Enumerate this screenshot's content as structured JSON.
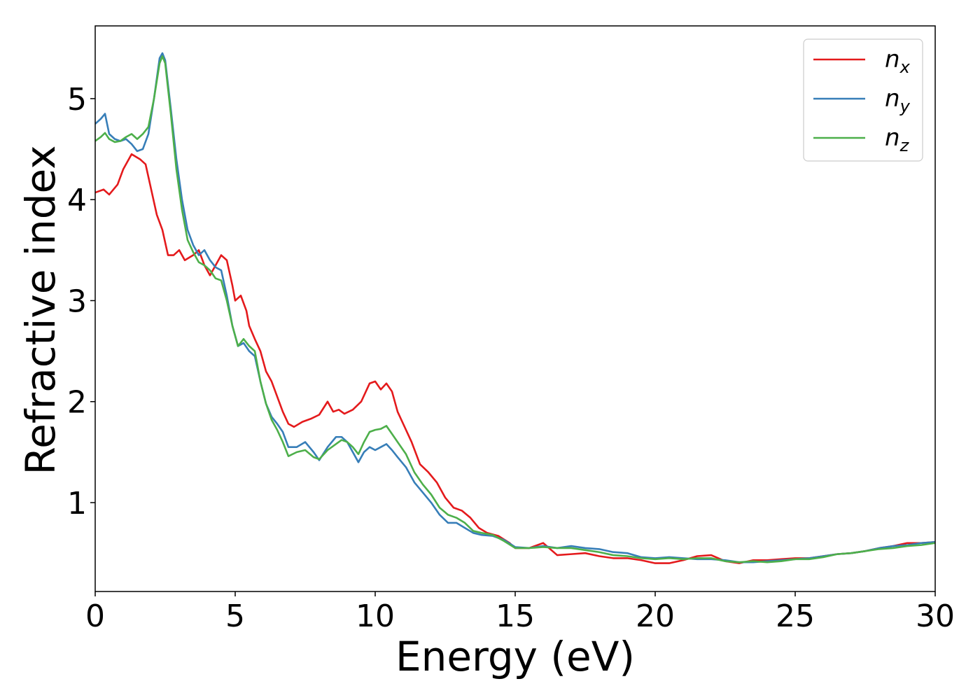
{
  "chart_data": {
    "type": "line",
    "title": "",
    "xlabel": "Energy (eV)",
    "ylabel": "Refractive index",
    "xlim": [
      0,
      30
    ],
    "ylim": [
      0.12,
      5.72
    ],
    "xticks": [
      0,
      5,
      10,
      15,
      20,
      25,
      30
    ],
    "xtick_labels": [
      "0",
      "5",
      "10",
      "15",
      "20",
      "25",
      "30"
    ],
    "yticks": [
      1,
      2,
      3,
      4,
      5
    ],
    "ytick_labels": [
      "1",
      "2",
      "3",
      "4",
      "5"
    ],
    "grid": false,
    "legend_position": "top-right",
    "series": [
      {
        "name": "n",
        "subscript": "x",
        "color": "#e41a1c",
        "points": [
          [
            0,
            4.07
          ],
          [
            0.3,
            4.1
          ],
          [
            0.5,
            4.05
          ],
          [
            0.8,
            4.15
          ],
          [
            1.0,
            4.3
          ],
          [
            1.3,
            4.45
          ],
          [
            1.6,
            4.4
          ],
          [
            1.8,
            4.35
          ],
          [
            2.0,
            4.1
          ],
          [
            2.2,
            3.85
          ],
          [
            2.4,
            3.7
          ],
          [
            2.6,
            3.45
          ],
          [
            2.8,
            3.45
          ],
          [
            3.0,
            3.5
          ],
          [
            3.2,
            3.4
          ],
          [
            3.5,
            3.45
          ],
          [
            3.7,
            3.5
          ],
          [
            3.9,
            3.35
          ],
          [
            4.1,
            3.25
          ],
          [
            4.3,
            3.35
          ],
          [
            4.5,
            3.45
          ],
          [
            4.7,
            3.4
          ],
          [
            4.9,
            3.15
          ],
          [
            5.0,
            3.0
          ],
          [
            5.2,
            3.05
          ],
          [
            5.4,
            2.9
          ],
          [
            5.5,
            2.75
          ],
          [
            5.7,
            2.62
          ],
          [
            5.9,
            2.5
          ],
          [
            6.1,
            2.3
          ],
          [
            6.3,
            2.2
          ],
          [
            6.5,
            2.05
          ],
          [
            6.7,
            1.9
          ],
          [
            6.9,
            1.78
          ],
          [
            7.1,
            1.75
          ],
          [
            7.4,
            1.8
          ],
          [
            7.7,
            1.83
          ],
          [
            8.0,
            1.87
          ],
          [
            8.3,
            2.0
          ],
          [
            8.5,
            1.9
          ],
          [
            8.7,
            1.92
          ],
          [
            8.9,
            1.88
          ],
          [
            9.2,
            1.92
          ],
          [
            9.5,
            2.0
          ],
          [
            9.8,
            2.18
          ],
          [
            10.0,
            2.2
          ],
          [
            10.2,
            2.12
          ],
          [
            10.4,
            2.18
          ],
          [
            10.6,
            2.1
          ],
          [
            10.8,
            1.9
          ],
          [
            11.0,
            1.78
          ],
          [
            11.3,
            1.6
          ],
          [
            11.6,
            1.38
          ],
          [
            11.9,
            1.3
          ],
          [
            12.2,
            1.2
          ],
          [
            12.5,
            1.05
          ],
          [
            12.8,
            0.95
          ],
          [
            13.1,
            0.92
          ],
          [
            13.4,
            0.85
          ],
          [
            13.7,
            0.75
          ],
          [
            14.0,
            0.7
          ],
          [
            14.4,
            0.67
          ],
          [
            14.8,
            0.6
          ],
          [
            15.0,
            0.55
          ],
          [
            15.5,
            0.55
          ],
          [
            16.0,
            0.6
          ],
          [
            16.5,
            0.48
          ],
          [
            17.0,
            0.49
          ],
          [
            17.5,
            0.5
          ],
          [
            18.0,
            0.47
          ],
          [
            18.5,
            0.45
          ],
          [
            19.0,
            0.45
          ],
          [
            19.5,
            0.43
          ],
          [
            20.0,
            0.4
          ],
          [
            20.5,
            0.4
          ],
          [
            21.0,
            0.43
          ],
          [
            21.5,
            0.47
          ],
          [
            22.0,
            0.48
          ],
          [
            22.5,
            0.42
          ],
          [
            23.0,
            0.4
          ],
          [
            23.5,
            0.43
          ],
          [
            24.0,
            0.43
          ],
          [
            24.5,
            0.44
          ],
          [
            25.0,
            0.45
          ],
          [
            25.5,
            0.45
          ],
          [
            26.0,
            0.47
          ],
          [
            26.5,
            0.49
          ],
          [
            27.0,
            0.5
          ],
          [
            27.5,
            0.52
          ],
          [
            28.0,
            0.55
          ],
          [
            28.5,
            0.57
          ],
          [
            29.0,
            0.6
          ],
          [
            29.5,
            0.6
          ],
          [
            30.0,
            0.61
          ]
        ]
      },
      {
        "name": "n",
        "subscript": "y",
        "color": "#377eb8",
        "points": [
          [
            0,
            4.75
          ],
          [
            0.2,
            4.8
          ],
          [
            0.35,
            4.85
          ],
          [
            0.5,
            4.65
          ],
          [
            0.7,
            4.6
          ],
          [
            0.9,
            4.58
          ],
          [
            1.1,
            4.6
          ],
          [
            1.3,
            4.55
          ],
          [
            1.5,
            4.48
          ],
          [
            1.7,
            4.5
          ],
          [
            1.9,
            4.65
          ],
          [
            2.1,
            5.0
          ],
          [
            2.3,
            5.4
          ],
          [
            2.4,
            5.45
          ],
          [
            2.5,
            5.38
          ],
          [
            2.7,
            4.9
          ],
          [
            2.9,
            4.4
          ],
          [
            3.1,
            4.0
          ],
          [
            3.3,
            3.7
          ],
          [
            3.5,
            3.55
          ],
          [
            3.7,
            3.45
          ],
          [
            3.9,
            3.5
          ],
          [
            4.1,
            3.4
          ],
          [
            4.3,
            3.33
          ],
          [
            4.5,
            3.3
          ],
          [
            4.7,
            3.05
          ],
          [
            4.9,
            2.75
          ],
          [
            5.1,
            2.55
          ],
          [
            5.3,
            2.58
          ],
          [
            5.5,
            2.5
          ],
          [
            5.7,
            2.45
          ],
          [
            5.9,
            2.2
          ],
          [
            6.1,
            1.98
          ],
          [
            6.3,
            1.85
          ],
          [
            6.5,
            1.78
          ],
          [
            6.7,
            1.7
          ],
          [
            6.9,
            1.55
          ],
          [
            7.2,
            1.55
          ],
          [
            7.5,
            1.6
          ],
          [
            7.8,
            1.5
          ],
          [
            8.0,
            1.42
          ],
          [
            8.3,
            1.55
          ],
          [
            8.6,
            1.65
          ],
          [
            8.8,
            1.65
          ],
          [
            9.0,
            1.6
          ],
          [
            9.2,
            1.5
          ],
          [
            9.4,
            1.4
          ],
          [
            9.6,
            1.5
          ],
          [
            9.8,
            1.55
          ],
          [
            10.0,
            1.52
          ],
          [
            10.2,
            1.55
          ],
          [
            10.4,
            1.58
          ],
          [
            10.6,
            1.52
          ],
          [
            10.8,
            1.45
          ],
          [
            11.1,
            1.35
          ],
          [
            11.4,
            1.2
          ],
          [
            11.7,
            1.1
          ],
          [
            12.0,
            1.0
          ],
          [
            12.3,
            0.88
          ],
          [
            12.6,
            0.8
          ],
          [
            12.9,
            0.8
          ],
          [
            13.2,
            0.75
          ],
          [
            13.5,
            0.7
          ],
          [
            13.8,
            0.68
          ],
          [
            14.2,
            0.67
          ],
          [
            14.6,
            0.63
          ],
          [
            15.0,
            0.56
          ],
          [
            15.5,
            0.55
          ],
          [
            16.0,
            0.57
          ],
          [
            16.5,
            0.55
          ],
          [
            17.0,
            0.57
          ],
          [
            17.5,
            0.55
          ],
          [
            18.0,
            0.54
          ],
          [
            18.5,
            0.51
          ],
          [
            19.0,
            0.5
          ],
          [
            19.5,
            0.46
          ],
          [
            20.0,
            0.45
          ],
          [
            20.5,
            0.46
          ],
          [
            21.0,
            0.45
          ],
          [
            21.5,
            0.44
          ],
          [
            22.0,
            0.44
          ],
          [
            22.5,
            0.43
          ],
          [
            23.0,
            0.41
          ],
          [
            23.5,
            0.41
          ],
          [
            24.0,
            0.42
          ],
          [
            24.5,
            0.43
          ],
          [
            25.0,
            0.44
          ],
          [
            25.5,
            0.45
          ],
          [
            26.0,
            0.47
          ],
          [
            26.5,
            0.49
          ],
          [
            27.0,
            0.5
          ],
          [
            27.5,
            0.52
          ],
          [
            28.0,
            0.55
          ],
          [
            28.5,
            0.57
          ],
          [
            29.0,
            0.58
          ],
          [
            29.5,
            0.6
          ],
          [
            30.0,
            0.61
          ]
        ]
      },
      {
        "name": "n",
        "subscript": "z",
        "color": "#4daf4a",
        "points": [
          [
            0,
            4.58
          ],
          [
            0.2,
            4.62
          ],
          [
            0.35,
            4.66
          ],
          [
            0.5,
            4.6
          ],
          [
            0.7,
            4.57
          ],
          [
            0.9,
            4.58
          ],
          [
            1.1,
            4.62
          ],
          [
            1.3,
            4.65
          ],
          [
            1.5,
            4.6
          ],
          [
            1.7,
            4.65
          ],
          [
            1.9,
            4.72
          ],
          [
            2.1,
            5.0
          ],
          [
            2.3,
            5.35
          ],
          [
            2.4,
            5.42
          ],
          [
            2.5,
            5.35
          ],
          [
            2.7,
            4.85
          ],
          [
            2.9,
            4.3
          ],
          [
            3.1,
            3.9
          ],
          [
            3.3,
            3.6
          ],
          [
            3.5,
            3.48
          ],
          [
            3.7,
            3.38
          ],
          [
            3.9,
            3.35
          ],
          [
            4.1,
            3.3
          ],
          [
            4.3,
            3.22
          ],
          [
            4.5,
            3.2
          ],
          [
            4.7,
            3.0
          ],
          [
            4.9,
            2.75
          ],
          [
            5.1,
            2.55
          ],
          [
            5.3,
            2.62
          ],
          [
            5.5,
            2.55
          ],
          [
            5.7,
            2.5
          ],
          [
            5.9,
            2.2
          ],
          [
            6.1,
            1.98
          ],
          [
            6.3,
            1.82
          ],
          [
            6.5,
            1.72
          ],
          [
            6.7,
            1.6
          ],
          [
            6.9,
            1.46
          ],
          [
            7.2,
            1.5
          ],
          [
            7.5,
            1.52
          ],
          [
            7.8,
            1.45
          ],
          [
            8.0,
            1.43
          ],
          [
            8.3,
            1.52
          ],
          [
            8.6,
            1.58
          ],
          [
            8.8,
            1.62
          ],
          [
            9.0,
            1.6
          ],
          [
            9.2,
            1.55
          ],
          [
            9.4,
            1.48
          ],
          [
            9.6,
            1.6
          ],
          [
            9.8,
            1.7
          ],
          [
            10.0,
            1.72
          ],
          [
            10.2,
            1.73
          ],
          [
            10.4,
            1.76
          ],
          [
            10.6,
            1.68
          ],
          [
            10.8,
            1.6
          ],
          [
            11.1,
            1.48
          ],
          [
            11.4,
            1.3
          ],
          [
            11.7,
            1.18
          ],
          [
            12.0,
            1.08
          ],
          [
            12.3,
            0.95
          ],
          [
            12.6,
            0.88
          ],
          [
            12.9,
            0.85
          ],
          [
            13.2,
            0.8
          ],
          [
            13.5,
            0.72
          ],
          [
            13.8,
            0.7
          ],
          [
            14.2,
            0.68
          ],
          [
            14.6,
            0.62
          ],
          [
            15.0,
            0.55
          ],
          [
            15.5,
            0.55
          ],
          [
            16.0,
            0.56
          ],
          [
            16.5,
            0.55
          ],
          [
            17.0,
            0.55
          ],
          [
            17.5,
            0.53
          ],
          [
            18.0,
            0.51
          ],
          [
            18.5,
            0.48
          ],
          [
            19.0,
            0.47
          ],
          [
            19.5,
            0.45
          ],
          [
            20.0,
            0.44
          ],
          [
            20.5,
            0.45
          ],
          [
            21.0,
            0.44
          ],
          [
            21.5,
            0.45
          ],
          [
            22.0,
            0.45
          ],
          [
            22.5,
            0.42
          ],
          [
            23.0,
            0.41
          ],
          [
            23.5,
            0.42
          ],
          [
            24.0,
            0.41
          ],
          [
            24.5,
            0.42
          ],
          [
            25.0,
            0.44
          ],
          [
            25.5,
            0.44
          ],
          [
            26.0,
            0.46
          ],
          [
            26.5,
            0.49
          ],
          [
            27.0,
            0.5
          ],
          [
            27.5,
            0.52
          ],
          [
            28.0,
            0.54
          ],
          [
            28.5,
            0.55
          ],
          [
            29.0,
            0.57
          ],
          [
            29.5,
            0.58
          ],
          [
            30.0,
            0.6
          ]
        ]
      }
    ]
  }
}
